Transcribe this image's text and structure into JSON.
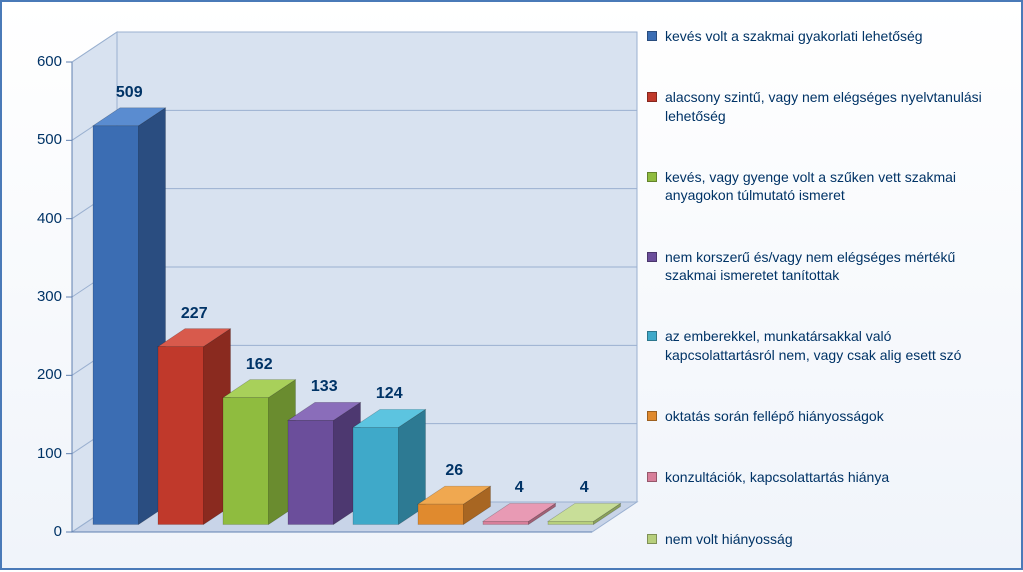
{
  "chart": {
    "type": "bar-3d",
    "ylim": [
      0,
      600
    ],
    "ytick_step": 100,
    "yticks": [
      0,
      100,
      200,
      300,
      400,
      500,
      600
    ],
    "values": [
      509,
      227,
      162,
      133,
      124,
      26,
      4,
      4
    ],
    "value_labels": [
      "509",
      "227",
      "162",
      "133",
      "124",
      "26",
      "4",
      "4"
    ],
    "bar_colors": [
      "#3b6db3",
      "#c0392b",
      "#8fbc3f",
      "#6b4e9b",
      "#3fa9c9",
      "#e08a2e",
      "#d77f9a",
      "#b7cf7c"
    ],
    "bar_colors_dark": [
      "#2a4d80",
      "#8a2a1f",
      "#6a8c2f",
      "#4d3870",
      "#2d7a93",
      "#a86622",
      "#a05f75",
      "#8aa05c"
    ],
    "bar_colors_top": [
      "#5a8cd0",
      "#d85a4c",
      "#a8d05a",
      "#8a6dba",
      "#5cc4e0",
      "#f0a850",
      "#e89ab4",
      "#c8de98"
    ],
    "background_color": "#ffffff",
    "gradient_end": "#f0f4fa",
    "border_color": "#4a7ab8",
    "text_color": "#003366",
    "wall_color": "#d8e2f0",
    "wall_edge": "#9ab0d0",
    "floor_color": "#c8d4e8",
    "label_fontsize": 15,
    "datalabel_fontsize": 16,
    "legend_fontsize": 14,
    "bar_width": 0.7
  },
  "legend": {
    "items": [
      {
        "color": "#3b6db3",
        "label": "kevés volt a szakmai gyakorlati lehetőség"
      },
      {
        "color": "#c0392b",
        "label": "alacsony szintű, vagy nem elégséges nyelvtanulási lehetőség"
      },
      {
        "color": "#8fbc3f",
        "label": "kevés, vagy gyenge volt a szűken vett szakmai anyagokon túlmutató ismeret"
      },
      {
        "color": "#6b4e9b",
        "label": "nem korszerű és/vagy nem elégséges mértékű szakmai ismeretet tanítottak"
      },
      {
        "color": "#3fa9c9",
        "label": "az emberekkel, munkatársakkal való kapcsolattartásról nem, vagy csak alig esett szó"
      },
      {
        "color": "#e08a2e",
        "label": "oktatás során fellépő hiányosságok"
      },
      {
        "color": "#d77f9a",
        "label": "konzultációk, kapcsolattartás hiánya"
      },
      {
        "color": "#b7cf7c",
        "label": "nem volt hiányosság"
      }
    ]
  }
}
